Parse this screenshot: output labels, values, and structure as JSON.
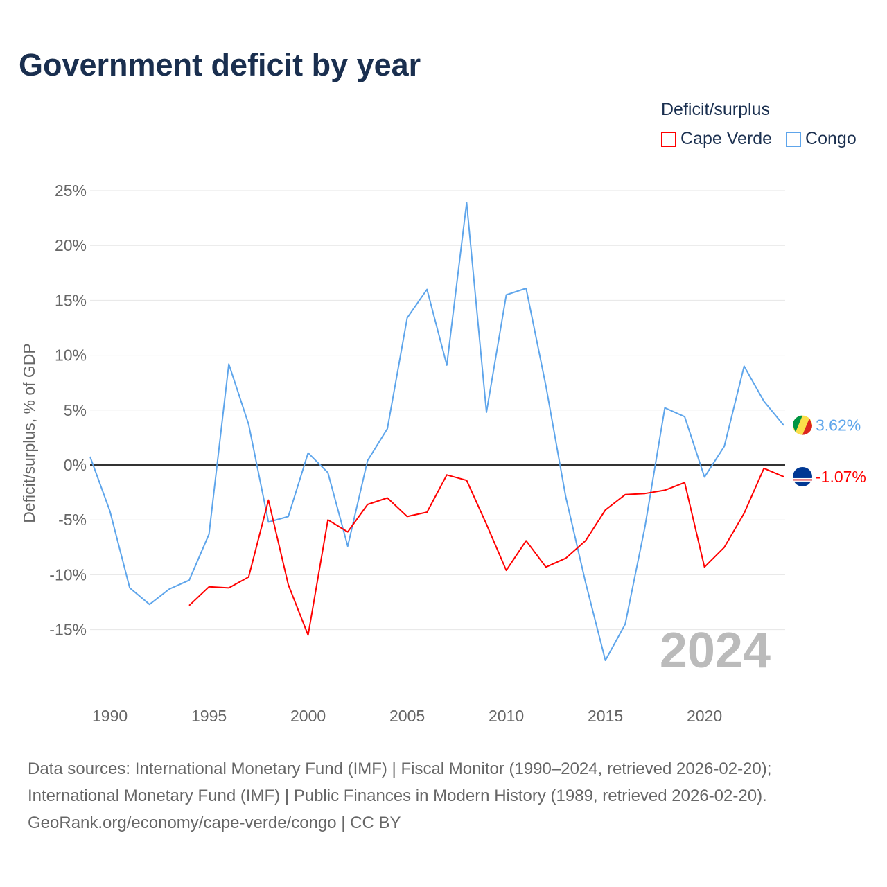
{
  "title": "Government deficit by year",
  "legend": {
    "title": "Deficit/surplus",
    "items": [
      {
        "name": "Cape Verde",
        "color": "#ff0000"
      },
      {
        "name": "Congo",
        "color": "#5ea5eb"
      }
    ]
  },
  "footer": [
    "Data sources: International Monetary Fund (IMF) | Fiscal Monitor (1990–2024, retrieved 2026-02-20);",
    "International Monetary Fund (IMF) | Public Finances in Modern History (1989, retrieved 2026-02-20).",
    "GeoRank.org/economy/cape-verde/congo | CC BY"
  ],
  "chart_data": {
    "type": "line",
    "title": "Government deficit by year",
    "ylabel": "Deficit/surplus, % of GDP",
    "xlabel": "",
    "xlim": [
      1989,
      2024
    ],
    "ylim": [
      -20,
      25
    ],
    "yticks": [
      25,
      20,
      15,
      10,
      5,
      0,
      -5,
      -10,
      -15
    ],
    "ytick_labels": [
      "25%",
      "20%",
      "15%",
      "10%",
      "5%",
      "0%",
      "-5%",
      "-10%",
      "-15%"
    ],
    "xticks": [
      1990,
      1995,
      2000,
      2005,
      2010,
      2015,
      2020
    ],
    "year_watermark": "2024",
    "series": [
      {
        "name": "Congo",
        "color": "#5ea5eb",
        "end_label": "3.62%",
        "x_start": 1989,
        "values": [
          0.76,
          -4.2,
          -11.2,
          -12.7,
          -11.3,
          -10.5,
          -6.3,
          9.2,
          3.7,
          -5.2,
          -4.7,
          1.1,
          -0.7,
          -7.4,
          0.4,
          3.3,
          13.4,
          16.0,
          9.1,
          23.9,
          4.8,
          15.5,
          16.1,
          7.2,
          -2.9,
          -10.7,
          -17.8,
          -14.5,
          -5.6,
          5.2,
          4.4,
          -1.1,
          1.7,
          9.0,
          5.8,
          3.62
        ]
      },
      {
        "name": "Cape Verde",
        "color": "#ff0000",
        "end_label": "-1.07%",
        "x_start": 1994,
        "values": [
          -12.8,
          -11.1,
          -11.2,
          -10.2,
          -3.2,
          -10.9,
          -15.5,
          -5.0,
          -6.1,
          -3.6,
          -3.0,
          -4.7,
          -4.3,
          -0.9,
          -1.4,
          -5.4,
          -9.6,
          -6.9,
          -9.3,
          -8.5,
          -6.9,
          -4.1,
          -2.7,
          -2.6,
          -2.3,
          -1.6,
          -9.3,
          -7.5,
          -4.4,
          -0.3,
          -1.07
        ]
      }
    ]
  }
}
